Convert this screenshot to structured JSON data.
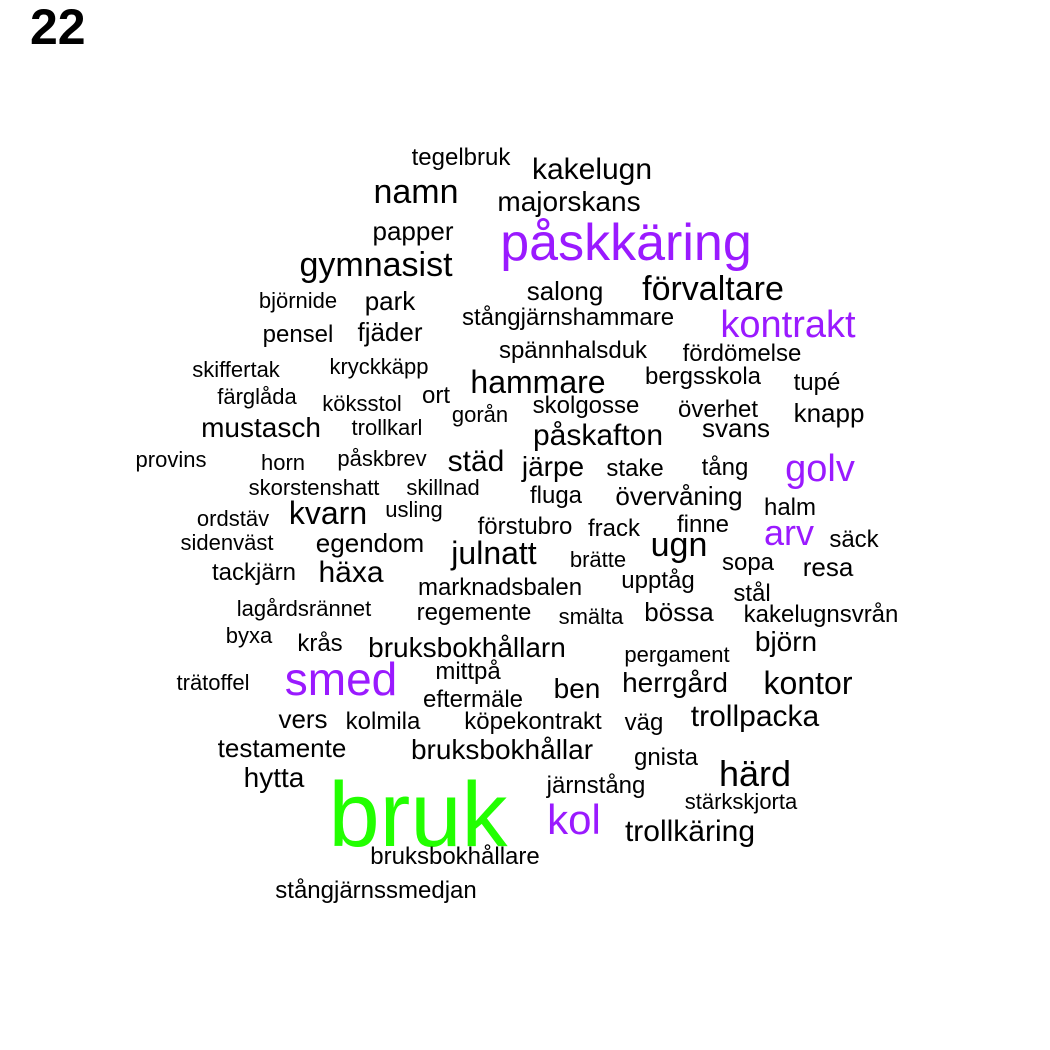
{
  "page_number": "22",
  "colors": {
    "tier1": "#22ff00",
    "tier2": "#9a1aff",
    "tier3": "#000000"
  },
  "words": [
    {
      "text": "bruk",
      "tier": 1
    },
    {
      "text": "påskkäring",
      "tier": 2
    },
    {
      "text": "smed",
      "tier": 2
    },
    {
      "text": "kontrakt",
      "tier": 2
    },
    {
      "text": "golv",
      "tier": 2
    },
    {
      "text": "arv",
      "tier": 2
    },
    {
      "text": "kol",
      "tier": 2
    },
    {
      "text": "tegelbruk",
      "tier": 3
    },
    {
      "text": "kakelugn",
      "tier": 3
    },
    {
      "text": "namn",
      "tier": 3
    },
    {
      "text": "majorskans",
      "tier": 3
    },
    {
      "text": "papper",
      "tier": 3
    },
    {
      "text": "gymnasist",
      "tier": 3
    },
    {
      "text": "salong",
      "tier": 3
    },
    {
      "text": "förvaltare",
      "tier": 3
    },
    {
      "text": "björnide",
      "tier": 3
    },
    {
      "text": "park",
      "tier": 3
    },
    {
      "text": "stångjärnshammare",
      "tier": 3
    },
    {
      "text": "pensel",
      "tier": 3
    },
    {
      "text": "fjäder",
      "tier": 3
    },
    {
      "text": "spännhalsduk",
      "tier": 3
    },
    {
      "text": "fördömelse",
      "tier": 3
    },
    {
      "text": "skiffertak",
      "tier": 3
    },
    {
      "text": "kryckkäpp",
      "tier": 3
    },
    {
      "text": "hammare",
      "tier": 3
    },
    {
      "text": "bergsskola",
      "tier": 3
    },
    {
      "text": "tupé",
      "tier": 3
    },
    {
      "text": "färglåda",
      "tier": 3
    },
    {
      "text": "ort",
      "tier": 3
    },
    {
      "text": "köksstol",
      "tier": 3
    },
    {
      "text": "skolgosse",
      "tier": 3
    },
    {
      "text": "överhet",
      "tier": 3
    },
    {
      "text": "knapp",
      "tier": 3
    },
    {
      "text": "mustasch",
      "tier": 3
    },
    {
      "text": "trollkarl",
      "tier": 3
    },
    {
      "text": "gorån",
      "tier": 3
    },
    {
      "text": "svans",
      "tier": 3
    },
    {
      "text": "påskafton",
      "tier": 3
    },
    {
      "text": "provins",
      "tier": 3
    },
    {
      "text": "horn",
      "tier": 3
    },
    {
      "text": "påskbrev",
      "tier": 3
    },
    {
      "text": "städ",
      "tier": 3
    },
    {
      "text": "järpe",
      "tier": 3
    },
    {
      "text": "stake",
      "tier": 3
    },
    {
      "text": "tång",
      "tier": 3
    },
    {
      "text": "skorstenshatt",
      "tier": 3
    },
    {
      "text": "skillnad",
      "tier": 3
    },
    {
      "text": "fluga",
      "tier": 3
    },
    {
      "text": "övervåning",
      "tier": 3
    },
    {
      "text": "halm",
      "tier": 3
    },
    {
      "text": "ordstäv",
      "tier": 3
    },
    {
      "text": "kvarn",
      "tier": 3
    },
    {
      "text": "usling",
      "tier": 3
    },
    {
      "text": "förstubro",
      "tier": 3
    },
    {
      "text": "frack",
      "tier": 3
    },
    {
      "text": "finne",
      "tier": 3
    },
    {
      "text": "säck",
      "tier": 3
    },
    {
      "text": "sidenväst",
      "tier": 3
    },
    {
      "text": "egendom",
      "tier": 3
    },
    {
      "text": "julnatt",
      "tier": 3
    },
    {
      "text": "brätte",
      "tier": 3
    },
    {
      "text": "ugn",
      "tier": 3
    },
    {
      "text": "sopa",
      "tier": 3
    },
    {
      "text": "resa",
      "tier": 3
    },
    {
      "text": "tackjärn",
      "tier": 3
    },
    {
      "text": "häxa",
      "tier": 3
    },
    {
      "text": "marknadsbalen",
      "tier": 3
    },
    {
      "text": "upptåg",
      "tier": 3
    },
    {
      "text": "stål",
      "tier": 3
    },
    {
      "text": "lagårdsrännet",
      "tier": 3
    },
    {
      "text": "regemente",
      "tier": 3
    },
    {
      "text": "smälta",
      "tier": 3
    },
    {
      "text": "bössa",
      "tier": 3
    },
    {
      "text": "kakelugnsvrån",
      "tier": 3
    },
    {
      "text": "byxa",
      "tier": 3
    },
    {
      "text": "krås",
      "tier": 3
    },
    {
      "text": "bruksbokhållarn",
      "tier": 3
    },
    {
      "text": "pergament",
      "tier": 3
    },
    {
      "text": "björn",
      "tier": 3
    },
    {
      "text": "mittpå",
      "tier": 3
    },
    {
      "text": "trätoffel",
      "tier": 3
    },
    {
      "text": "eftermäle",
      "tier": 3
    },
    {
      "text": "ben",
      "tier": 3
    },
    {
      "text": "herrgård",
      "tier": 3
    },
    {
      "text": "kontor",
      "tier": 3
    },
    {
      "text": "vers",
      "tier": 3
    },
    {
      "text": "kolmila",
      "tier": 3
    },
    {
      "text": "köpekontrakt",
      "tier": 3
    },
    {
      "text": "väg",
      "tier": 3
    },
    {
      "text": "trollpacka",
      "tier": 3
    },
    {
      "text": "testamente",
      "tier": 3
    },
    {
      "text": "bruksbokhållar",
      "tier": 3
    },
    {
      "text": "gnista",
      "tier": 3
    },
    {
      "text": "hytta",
      "tier": 3
    },
    {
      "text": "härd",
      "tier": 3
    },
    {
      "text": "järnstång",
      "tier": 3
    },
    {
      "text": "stärkskjorta",
      "tier": 3
    },
    {
      "text": "trollkäring",
      "tier": 3
    },
    {
      "text": "bruksbokhållare",
      "tier": 3
    },
    {
      "text": "stångjärnssmedjan",
      "tier": 3
    }
  ]
}
